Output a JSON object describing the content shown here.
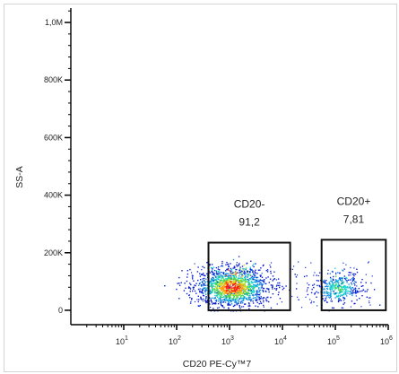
{
  "chart_data": {
    "type": "scatter",
    "title": "",
    "xlabel": "CD20 PE-Cy™7",
    "ylabel": "SS-A",
    "x_scale": "log",
    "xlim": [
      1,
      1000000
    ],
    "ylim": [
      -50000,
      1050000
    ],
    "x_ticks": [
      {
        "value": 10,
        "base": "10",
        "exp": "1"
      },
      {
        "value": 100,
        "base": "10",
        "exp": "2"
      },
      {
        "value": 1000,
        "base": "10",
        "exp": "3"
      },
      {
        "value": 10000,
        "base": "10",
        "exp": "4"
      },
      {
        "value": 100000,
        "base": "10",
        "exp": "5"
      },
      {
        "value": 1000000,
        "base": "10",
        "exp": "6"
      }
    ],
    "y_ticks": [
      {
        "value": 0,
        "label": "0"
      },
      {
        "value": 200000,
        "label": "200K"
      },
      {
        "value": 400000,
        "label": "400K"
      },
      {
        "value": 600000,
        "label": "600K"
      },
      {
        "value": 800000,
        "label": "800K"
      },
      {
        "value": 1000000,
        "label": "1,0M"
      }
    ],
    "gates": [
      {
        "name": "CD20-",
        "value": "91,2",
        "x_range": [
          400,
          14000
        ],
        "y_range": [
          0,
          235000
        ]
      },
      {
        "name": "CD20+",
        "value": "7,81",
        "x_range": [
          55000,
          900000
        ],
        "y_range": [
          0,
          245000
        ]
      }
    ],
    "populations": [
      {
        "name": "CD20-",
        "center_x": 1100,
        "center_y": 75000
      },
      {
        "name": "CD20+",
        "center_x": 110000,
        "center_y": 70000
      }
    ],
    "grid": false,
    "legend": "none"
  }
}
